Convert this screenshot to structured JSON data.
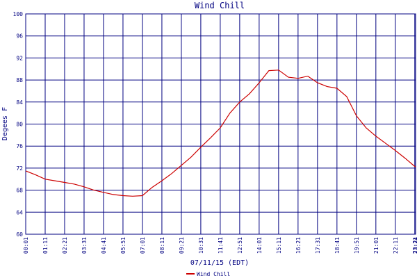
{
  "chart_data": {
    "type": "line",
    "title": "Wind Chill",
    "y_label": "Degees F",
    "x_label": "07/11/15 (EDT)",
    "x": [
      "00:01",
      "00:36",
      "01:11",
      "01:46",
      "02:21",
      "02:56",
      "03:31",
      "04:06",
      "04:41",
      "05:16",
      "05:51",
      "06:26",
      "07:01",
      "07:36",
      "08:11",
      "08:46",
      "09:21",
      "09:56",
      "10:31",
      "11:06",
      "11:41",
      "12:16",
      "12:51",
      "13:26",
      "14:01",
      "14:36",
      "15:11",
      "15:46",
      "16:21",
      "16:56",
      "17:31",
      "18:06",
      "18:41",
      "19:16",
      "19:51",
      "20:26",
      "21:01",
      "21:36",
      "22:11",
      "22:46",
      "23:21",
      "23:24"
    ],
    "series": [
      {
        "name": "Wind Chill",
        "color": "#cc0000",
        "values": [
          71.5,
          70.8,
          70.0,
          69.7,
          69.4,
          69.1,
          68.6,
          68.0,
          67.6,
          67.2,
          67.0,
          66.9,
          67.0,
          68.5,
          69.7,
          71.0,
          72.5,
          74.0,
          75.8,
          77.5,
          79.3,
          82.0,
          84.0,
          85.5,
          87.5,
          89.7,
          89.8,
          88.5,
          88.3,
          88.7,
          87.5,
          86.8,
          86.5,
          85.0,
          81.5,
          79.3,
          77.8,
          76.5,
          75.2,
          73.8,
          72.3,
          72.2
        ]
      }
    ],
    "xlim": [
      "00:01",
      "23:24"
    ],
    "xticks": [
      "00:01",
      "01:11",
      "02:21",
      "03:31",
      "04:41",
      "05:51",
      "07:01",
      "08:11",
      "09:21",
      "10:31",
      "11:41",
      "12:51",
      "14:01",
      "15:11",
      "16:21",
      "17:31",
      "18:41",
      "19:51",
      "21:01",
      "22:11",
      "23:21",
      "23:24"
    ],
    "ylim": [
      60,
      100
    ],
    "yticks": [
      60,
      64,
      68,
      72,
      76,
      80,
      84,
      88,
      92,
      96,
      100
    ],
    "grid": true
  }
}
